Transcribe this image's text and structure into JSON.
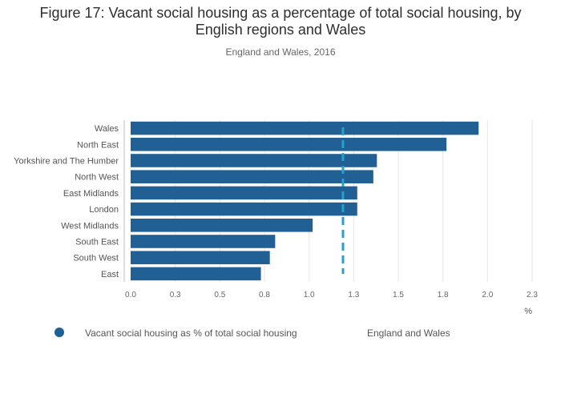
{
  "colors": {
    "bar": "#206095",
    "reference": "#27a0cc",
    "grid": "#e5e5e5",
    "axis": "#bfbfbf"
  },
  "chart_data": {
    "type": "bar",
    "orientation": "horizontal",
    "title_line1": "Figure 17: Vacant social housing as a percentage of total social housing, by",
    "title_line2": "English regions and Wales",
    "subtitle": "England and Wales, 2016",
    "categories": [
      "Wales",
      "North East",
      "Yorkshire and The Humber",
      "North West",
      "East Midlands",
      "London",
      "West Midlands",
      "South East",
      "South West",
      "East"
    ],
    "values": [
      1.95,
      1.77,
      1.38,
      1.36,
      1.27,
      1.27,
      1.02,
      0.81,
      0.78,
      0.73
    ],
    "reference_line": {
      "name": "England and Wales",
      "value": 1.19
    },
    "series_name": "Vacant social housing as % of total social housing",
    "x_ticks": [
      0,
      0.25,
      0.5,
      0.75,
      1.0,
      1.25,
      1.5,
      1.75,
      2.0,
      2.25
    ],
    "x_tick_labels": [
      "0.0",
      "0.3",
      "0.5",
      "0.8",
      "1.0",
      "1.3",
      "1.5",
      "1.8",
      "2.0",
      "2.3"
    ],
    "xlim": [
      0,
      2.25
    ],
    "xlabel": "%",
    "grid": true,
    "legend_position": "bottom"
  }
}
